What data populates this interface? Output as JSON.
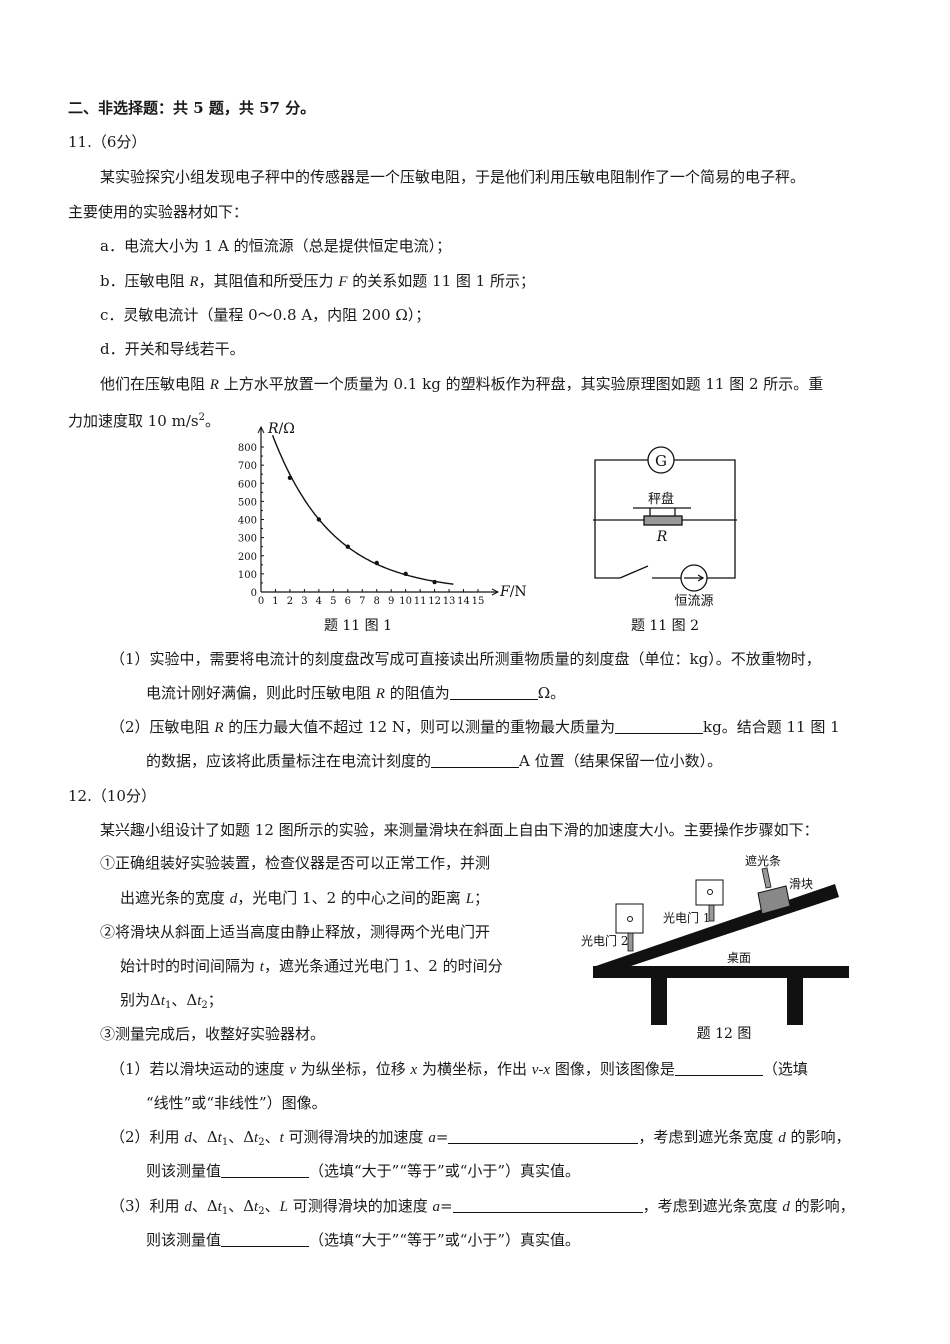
{
  "lines": [
    {
      "segs": [
        {
          "t": "二、非选择题：共 5 题，共 57 分。",
          "k": "bold"
        }
      ]
    },
    {
      "segs": [
        {
          "t": "11.（6分）"
        }
      ]
    },
    {
      "segs": [
        {
          "t": "某实验探究小组发现电子秤中的传感器是一个压敏电阻，于是他们利用压敏电阻制作了一个简易的电子秤。"
        }
      ]
    },
    {
      "segs": [
        {
          "t": "主要使用的实验器材如下："
        }
      ]
    },
    {
      "segs": [
        {
          "t": "a．电流大小为 1 A 的恒流源（总是提供恒定电流）；"
        }
      ]
    },
    {
      "segs": [
        {
          "t": "b．压敏电阻 "
        },
        {
          "t": "R",
          "k": "i"
        },
        {
          "t": "，其阻值和所受压力 "
        },
        {
          "t": "F",
          "k": "i"
        },
        {
          "t": " 的关系如题 11 图 1 所示；"
        }
      ]
    },
    {
      "segs": [
        {
          "t": "c．灵敏电流计（量程 0～0.8 A，内阻 200 Ω）；"
        }
      ]
    },
    {
      "segs": [
        {
          "t": "d．开关和导线若干。"
        }
      ]
    },
    {
      "segs": [
        {
          "t": "他们在压敏电阻 "
        },
        {
          "t": "R",
          "k": "i"
        },
        {
          "t": " 上方水平放置一个质量为 0.1 kg 的塑料板作为秤盘，其实验原理图如题 11 图 2 所示。重"
        }
      ]
    },
    {
      "segs": [
        {
          "t": "力加速度取 10 m/s"
        },
        {
          "t": "2",
          "k": "sup"
        },
        {
          "t": "。"
        }
      ]
    },
    {
      "segs": [
        {
          "t": "（1）实验中，需要将电流计的刻度盘改写成可直接读出所测重物质量的刻度盘（单位：kg）。不放重物时，"
        }
      ]
    },
    {
      "segs": [
        {
          "t": "电流计刚好满偏，则此时压敏电阻 "
        },
        {
          "t": "R",
          "k": "i"
        },
        {
          "t": " 的阻值为"
        },
        {
          "t": "",
          "k": "blank"
        },
        {
          "t": "Ω。"
        }
      ]
    },
    {
      "segs": [
        {
          "t": "（2）压敏电阻 "
        },
        {
          "t": "R",
          "k": "i"
        },
        {
          "t": " 的压力最大值不超过 12 N，则可以测量的重物最大质量为"
        },
        {
          "t": "",
          "k": "blank"
        },
        {
          "t": "kg。结合题 11 图 1"
        }
      ]
    },
    {
      "segs": [
        {
          "t": "的数据，应该将此质量标注在电流计刻度的"
        },
        {
          "t": "",
          "k": "blank"
        },
        {
          "t": "A 位置（结果保留一位小数）。"
        }
      ]
    },
    {
      "segs": [
        {
          "t": "12.（10分）"
        }
      ]
    },
    {
      "segs": [
        {
          "t": "某兴趣小组设计了如题 12 图所示的实验，来测量滑块在斜面上自由下滑的加速度大小。主要操作步骤如下："
        }
      ]
    },
    {
      "segs": [
        {
          "t": "①正确组装好实验装置，检查仪器是否可以正常工作，并测"
        }
      ]
    },
    {
      "segs": [
        {
          "t": "出遮光条的宽度 "
        },
        {
          "t": "d",
          "k": "i"
        },
        {
          "t": "，光电门 1、2 的中心之间的距离 "
        },
        {
          "t": "L",
          "k": "i"
        },
        {
          "t": "；"
        }
      ]
    },
    {
      "segs": [
        {
          "t": "②将滑块从斜面上适当高度由静止释放，测得两个光电门开"
        }
      ]
    },
    {
      "segs": [
        {
          "t": "始计时的时间间隔为 "
        },
        {
          "t": "t",
          "k": "i"
        },
        {
          "t": "，遮光条通过光电门 1、2 的时间分"
        }
      ]
    },
    {
      "segs": [
        {
          "t": "别为Δ"
        },
        {
          "t": "t",
          "k": "i"
        },
        {
          "t": "1",
          "k": "sub"
        },
        {
          "t": "、Δ"
        },
        {
          "t": "t",
          "k": "i"
        },
        {
          "t": "2",
          "k": "sub"
        },
        {
          "t": "；"
        }
      ]
    },
    {
      "segs": [
        {
          "t": "③测量完成后，收整好实验器材。"
        }
      ]
    },
    {
      "segs": [
        {
          "t": "（1）若以滑块运动的速度 "
        },
        {
          "t": "v",
          "k": "i"
        },
        {
          "t": " 为纵坐标，位移 "
        },
        {
          "t": "x",
          "k": "i"
        },
        {
          "t": " 为横坐标，作出 "
        },
        {
          "t": "v-x",
          "k": "i"
        },
        {
          "t": " 图像，则该图像是"
        },
        {
          "t": "",
          "k": "blank"
        },
        {
          "t": "（选填"
        }
      ]
    },
    {
      "segs": [
        {
          "t": "“线性”或“非线性”）图像。"
        }
      ]
    },
    {
      "segs": [
        {
          "t": "（2）利用 "
        },
        {
          "t": "d",
          "k": "i"
        },
        {
          "t": "、Δ"
        },
        {
          "t": "t",
          "k": "i"
        },
        {
          "t": "1",
          "k": "sub"
        },
        {
          "t": "、Δ"
        },
        {
          "t": "t",
          "k": "i"
        },
        {
          "t": "2",
          "k": "sub"
        },
        {
          "t": "、"
        },
        {
          "t": "t",
          "k": "i"
        },
        {
          "t": " 可测得滑块的加速度 "
        },
        {
          "t": "a",
          "k": "i"
        },
        {
          "t": "="
        },
        {
          "t": "",
          "k": "blank long"
        },
        {
          "t": "，考虑到遮光条宽度 "
        },
        {
          "t": "d",
          "k": "i"
        },
        {
          "t": " 的影响，"
        }
      ]
    },
    {
      "segs": [
        {
          "t": "则该测量值"
        },
        {
          "t": "",
          "k": "blank"
        },
        {
          "t": "（选填“大于”“等于”或“小于”）真实值。"
        }
      ]
    },
    {
      "segs": [
        {
          "t": "（3）利用 "
        },
        {
          "t": "d",
          "k": "i"
        },
        {
          "t": "、Δ"
        },
        {
          "t": "t",
          "k": "i"
        },
        {
          "t": "1",
          "k": "sub"
        },
        {
          "t": "、Δ"
        },
        {
          "t": "t",
          "k": "i"
        },
        {
          "t": "2",
          "k": "sub"
        },
        {
          "t": "、"
        },
        {
          "t": "L",
          "k": "i"
        },
        {
          "t": " 可测得滑块的加速度 "
        },
        {
          "t": "a",
          "k": "i"
        },
        {
          "t": "="
        },
        {
          "t": "",
          "k": "blank long"
        },
        {
          "t": "，考虑到遮光条宽度 "
        },
        {
          "t": "d",
          "k": "i"
        },
        {
          "t": " 的影响，"
        }
      ]
    },
    {
      "segs": [
        {
          "t": "则该测量值"
        },
        {
          "t": "",
          "k": "blank"
        },
        {
          "t": "（选填“大于”“等于”或“小于”）真实值。"
        }
      ]
    }
  ],
  "chart_data": {
    "type": "line",
    "title": "",
    "caption": "题 11 图 1",
    "xlabel_var": "F",
    "xlabel_unit": "/N",
    "ylabel_var": "R",
    "ylabel_unit": "/Ω",
    "xlim": [
      0,
      15
    ],
    "ylim": [
      0,
      800
    ],
    "xticks": [
      "0",
      "1",
      "2",
      "3",
      "4",
      "5",
      "6",
      "7",
      "8",
      "9",
      "10",
      "11",
      "12",
      "13",
      "14",
      "15"
    ],
    "yticks": [
      "0",
      "100",
      "200",
      "300",
      "400",
      "500",
      "600",
      "700",
      "800"
    ],
    "grid": false,
    "points": [
      [
        2,
        630
      ],
      [
        4,
        400
      ],
      [
        6,
        250
      ],
      [
        8,
        160
      ],
      [
        10,
        100
      ],
      [
        12,
        55
      ]
    ]
  },
  "circuit": {
    "caption": "题 11 图 2",
    "galvanometer": "G",
    "pan_label": "秤盘",
    "resistor_label": "R",
    "source_label": "恒流源"
  },
  "fig12": {
    "caption": "题 12 图",
    "strip_label": "遮光条",
    "slider_label": "滑块",
    "gate1_label": "光电门 1",
    "gate2_label": "光电门 2",
    "table_label": "桌面"
  }
}
